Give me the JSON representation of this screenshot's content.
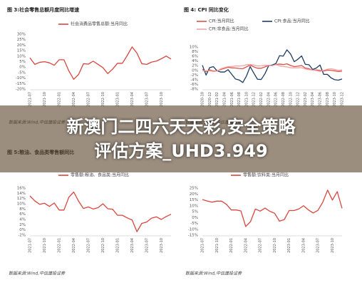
{
  "chart_data": [
    {
      "type": "line",
      "title": "图 3:社会零售总额月度同比增速",
      "source": "数据来源:Wind,中信建投证券",
      "categories": [
        "2021-07",
        null,
        null,
        "2021-10",
        null,
        null,
        "2022-01",
        null,
        null,
        "2022-04",
        null,
        null,
        "2022-07",
        null,
        null,
        "2022-10",
        null,
        null,
        "2023-01",
        null,
        null,
        "2023-04",
        null,
        null,
        "2023-07",
        null,
        null,
        "2023-10",
        null,
        null
      ],
      "series": [
        {
          "name": "社会消费品零售总额:当月同比",
          "color": "#d9463f",
          "values": [
            8.5,
            2.5,
            4.4,
            4.9,
            3.9,
            1.7,
            6.7,
            6.7,
            -3.5,
            -11.1,
            -6.7,
            3.1,
            2.7,
            5.4,
            2.5,
            -0.5,
            -5.9,
            -1.8,
            3.5,
            3.5,
            10.6,
            18.4,
            12.7,
            3.1,
            2.5,
            4.6,
            5.5,
            7.6,
            10.1,
            7.4
          ]
        }
      ],
      "ylim": [
        -20,
        30
      ],
      "yticks": [
        {
          "value": -20,
          "label": "-20%"
        },
        {
          "value": -15,
          "label": "-15%"
        },
        {
          "value": -10,
          "label": "-10%"
        },
        {
          "value": -5,
          "label": "-5%"
        },
        {
          "value": 0,
          "label": "0%"
        },
        {
          "value": 5,
          "label": "5%"
        },
        {
          "value": 10,
          "label": "10%"
        },
        {
          "value": 15,
          "label": "15%"
        },
        {
          "value": 20,
          "label": "20%"
        },
        {
          "value": 25,
          "label": "25%"
        },
        {
          "value": 30,
          "label": "30%"
        }
      ]
    },
    {
      "type": "line",
      "title": "图 4: CPI 同比变化",
      "source": "数据来源:Wind,中信建投证券",
      "categories": [
        "2020-10",
        null,
        "2020-12",
        null,
        "2021-02",
        null,
        "2021-04",
        null,
        "2021-06",
        null,
        "2021-08",
        null,
        "2021-10",
        null,
        "2021-12",
        null,
        "2022-02",
        null,
        "2022-04",
        null,
        "2022-06",
        null,
        "2022-08",
        null,
        "2022-10",
        null,
        "2022-12",
        null,
        "2023-02",
        null,
        "2023-04",
        null,
        "2023-06",
        null,
        "2023-08",
        null,
        "2023-10",
        null,
        "2023-12"
      ],
      "series": [
        {
          "name": "CPI:当月同比",
          "color": "#e0504a",
          "values": [
            0.5,
            -0.5,
            0.2,
            -0.3,
            -0.2,
            0.4,
            0.9,
            1.3,
            1.1,
            1.0,
            0.8,
            0.7,
            1.5,
            2.3,
            1.5,
            0.9,
            0.9,
            1.5,
            2.1,
            2.1,
            2.5,
            2.7,
            2.5,
            2.8,
            2.1,
            1.6,
            1.8,
            2.1,
            1.0,
            0.7,
            0.1,
            0.2,
            0.0,
            -0.3,
            0.1,
            0.0,
            -0.2,
            -0.5,
            -0.3
          ]
        },
        {
          "name": "CPI:食品:当月同比",
          "color": "#1f3c64",
          "values": [
            2.2,
            -2.0,
            1.2,
            1.6,
            -0.2,
            -0.7,
            -0.7,
            0.3,
            -1.7,
            -3.7,
            -4.1,
            -5.2,
            -2.4,
            1.6,
            -1.2,
            -3.8,
            -3.9,
            -1.5,
            1.9,
            2.3,
            2.9,
            6.3,
            6.1,
            8.8,
            7.0,
            3.7,
            4.8,
            6.2,
            2.6,
            2.4,
            0.4,
            1.0,
            2.3,
            -1.7,
            -1.7,
            -3.2,
            -4.0,
            -4.2,
            -3.7
          ]
        },
        {
          "name": "CPI:非食品:当月同比",
          "color": "#f2a3a0",
          "values": [
            -0.3,
            -0.1,
            -0.2,
            -0.5,
            -0.3,
            0.7,
            1.2,
            1.6,
            1.6,
            1.9,
            1.9,
            2.0,
            2.4,
            2.5,
            2.3,
            1.9,
            2.0,
            2.2,
            2.1,
            2.0,
            2.5,
            1.9,
            1.7,
            1.5,
            1.1,
            1.1,
            1.1,
            1.2,
            0.6,
            0.3,
            0.1,
            -0.1,
            -0.5,
            0.0,
            0.5,
            0.7,
            0.4,
            0.0,
            0.2
          ]
        }
      ],
      "ylim": [
        -8,
        10
      ],
      "yticks": [
        {
          "value": -8,
          "label": "-8%"
        },
        {
          "value": -6,
          "label": "-6%"
        },
        {
          "value": -4,
          "label": "-4%"
        },
        {
          "value": -2,
          "label": "-2%"
        },
        {
          "value": 0,
          "label": "0%"
        },
        {
          "value": 2,
          "label": "2%"
        },
        {
          "value": 4,
          "label": "4%"
        },
        {
          "value": 6,
          "label": "6%"
        },
        {
          "value": 8,
          "label": "8%"
        },
        {
          "value": 10,
          "label": "10%"
        }
      ]
    },
    {
      "type": "line",
      "title": "图 5:粮油、食品类零售额同比",
      "source": "数据来源:Wind,中信建投证券",
      "categories": [
        "2021-07",
        null,
        null,
        "2021-10",
        null,
        null,
        "2022-01",
        null,
        null,
        "2022-04",
        null,
        null,
        "2022-07",
        null,
        null,
        "2022-10",
        null,
        null,
        "2023-01",
        null,
        null,
        "2023-04",
        null,
        null,
        "2023-07",
        null,
        null,
        "2023-10",
        null,
        null
      ],
      "series": [
        {
          "name": "零售额:粮油、食品类:当月同比",
          "color": "#d9463f",
          "values": [
            13.0,
            11.1,
            9.8,
            10.2,
            9.0,
            10.3,
            7.6,
            7.6,
            12.5,
            14.5,
            11.0,
            8.2,
            8.8,
            8.0,
            8.5,
            10.0,
            8.1,
            7.9,
            5.6,
            5.6,
            4.6,
            3.8,
            -0.7,
            2.5,
            3.0,
            4.5,
            5.0,
            4.0,
            5.1,
            6.0
          ]
        }
      ],
      "ylim": [
        -2,
        16
      ],
      "yticks": [
        {
          "value": -2,
          "label": "-2%"
        },
        {
          "value": 0,
          "label": "0%"
        },
        {
          "value": 2,
          "label": "2%"
        },
        {
          "value": 4,
          "label": "4%"
        },
        {
          "value": 6,
          "label": "6%"
        },
        {
          "value": 8,
          "label": "8%"
        },
        {
          "value": 10,
          "label": "10%"
        },
        {
          "value": 12,
          "label": "12%"
        },
        {
          "value": 14,
          "label": "14%"
        },
        {
          "value": 16,
          "label": "16%"
        }
      ]
    },
    {
      "type": "line",
      "source": "数据来源:Wind,中信建投证券",
      "categories": [
        "2021-07",
        null,
        null,
        "2021-10",
        null,
        null,
        "2022-01",
        null,
        null,
        "2022-04",
        null,
        null,
        "2022-07",
        null,
        null,
        "2022-10",
        null,
        null,
        "2023-01",
        null,
        null,
        "2023-04",
        null,
        null,
        "2023-07",
        null,
        null,
        "2023-10",
        null,
        null
      ],
      "series": [
        {
          "name": "零售额:饮料类:当月同比",
          "color": "#d9463f",
          "values": [
            15.2,
            14.0,
            13.0,
            13.9,
            13.9,
            11.2,
            6.4,
            6.4,
            5.6,
            -7.7,
            -3.5,
            7.2,
            5.4,
            8.0,
            5.3,
            3.6,
            -3.1,
            -1.8,
            5.9,
            5.9,
            7.2,
            10.0,
            6.5,
            3.8,
            6.1,
            13.0,
            23.3,
            14.8,
            22.0,
            7.8
          ]
        }
      ],
      "ylim": [
        -15,
        25
      ],
      "yticks": [
        {
          "value": -15,
          "label": "-15%"
        },
        {
          "value": -10,
          "label": "-10%"
        },
        {
          "value": -5,
          "label": "-5%"
        },
        {
          "value": 0,
          "label": "0%"
        },
        {
          "value": 5,
          "label": "5%"
        },
        {
          "value": 10,
          "label": "10%"
        },
        {
          "value": 15,
          "label": "15%"
        },
        {
          "value": 20,
          "label": "20%"
        },
        {
          "value": 25,
          "label": "25%"
        }
      ]
    }
  ],
  "banner": {
    "lines": [
      "新澳门二四六天天彩,安全策略",
      "评估方案_UHD3.949"
    ]
  }
}
